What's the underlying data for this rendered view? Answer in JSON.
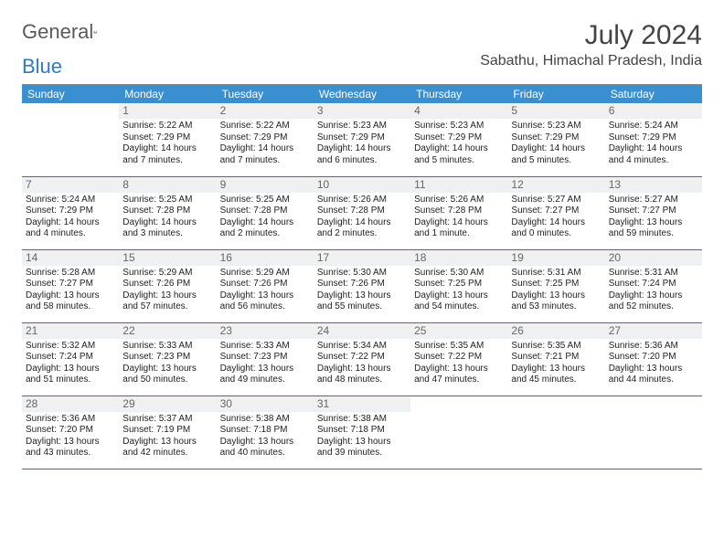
{
  "brand": {
    "word1": "General",
    "word2": "Blue",
    "accent": "#2f7bbf",
    "textcolor": "#5a5a5a"
  },
  "title": "July 2024",
  "subtitle": "Sabathu, Himachal Pradesh, India",
  "header_bg": "#3a8fd0",
  "header_fg": "#ffffff",
  "rule_color": "#3a6ea5",
  "daybar_bg": "#eef0f2",
  "days": [
    "Sunday",
    "Monday",
    "Tuesday",
    "Wednesday",
    "Thursday",
    "Friday",
    "Saturday"
  ],
  "fontsize_day": 12,
  "fontsize_info": 10,
  "weeks": [
    [
      {
        "n": "",
        "sr": "",
        "ss": "",
        "dl": ""
      },
      {
        "n": "1",
        "sr": "Sunrise: 5:22 AM",
        "ss": "Sunset: 7:29 PM",
        "dl": "Daylight: 14 hours and 7 minutes."
      },
      {
        "n": "2",
        "sr": "Sunrise: 5:22 AM",
        "ss": "Sunset: 7:29 PM",
        "dl": "Daylight: 14 hours and 7 minutes."
      },
      {
        "n": "3",
        "sr": "Sunrise: 5:23 AM",
        "ss": "Sunset: 7:29 PM",
        "dl": "Daylight: 14 hours and 6 minutes."
      },
      {
        "n": "4",
        "sr": "Sunrise: 5:23 AM",
        "ss": "Sunset: 7:29 PM",
        "dl": "Daylight: 14 hours and 5 minutes."
      },
      {
        "n": "5",
        "sr": "Sunrise: 5:23 AM",
        "ss": "Sunset: 7:29 PM",
        "dl": "Daylight: 14 hours and 5 minutes."
      },
      {
        "n": "6",
        "sr": "Sunrise: 5:24 AM",
        "ss": "Sunset: 7:29 PM",
        "dl": "Daylight: 14 hours and 4 minutes."
      }
    ],
    [
      {
        "n": "7",
        "sr": "Sunrise: 5:24 AM",
        "ss": "Sunset: 7:29 PM",
        "dl": "Daylight: 14 hours and 4 minutes."
      },
      {
        "n": "8",
        "sr": "Sunrise: 5:25 AM",
        "ss": "Sunset: 7:28 PM",
        "dl": "Daylight: 14 hours and 3 minutes."
      },
      {
        "n": "9",
        "sr": "Sunrise: 5:25 AM",
        "ss": "Sunset: 7:28 PM",
        "dl": "Daylight: 14 hours and 2 minutes."
      },
      {
        "n": "10",
        "sr": "Sunrise: 5:26 AM",
        "ss": "Sunset: 7:28 PM",
        "dl": "Daylight: 14 hours and 2 minutes."
      },
      {
        "n": "11",
        "sr": "Sunrise: 5:26 AM",
        "ss": "Sunset: 7:28 PM",
        "dl": "Daylight: 14 hours and 1 minute."
      },
      {
        "n": "12",
        "sr": "Sunrise: 5:27 AM",
        "ss": "Sunset: 7:27 PM",
        "dl": "Daylight: 14 hours and 0 minutes."
      },
      {
        "n": "13",
        "sr": "Sunrise: 5:27 AM",
        "ss": "Sunset: 7:27 PM",
        "dl": "Daylight: 13 hours and 59 minutes."
      }
    ],
    [
      {
        "n": "14",
        "sr": "Sunrise: 5:28 AM",
        "ss": "Sunset: 7:27 PM",
        "dl": "Daylight: 13 hours and 58 minutes."
      },
      {
        "n": "15",
        "sr": "Sunrise: 5:29 AM",
        "ss": "Sunset: 7:26 PM",
        "dl": "Daylight: 13 hours and 57 minutes."
      },
      {
        "n": "16",
        "sr": "Sunrise: 5:29 AM",
        "ss": "Sunset: 7:26 PM",
        "dl": "Daylight: 13 hours and 56 minutes."
      },
      {
        "n": "17",
        "sr": "Sunrise: 5:30 AM",
        "ss": "Sunset: 7:26 PM",
        "dl": "Daylight: 13 hours and 55 minutes."
      },
      {
        "n": "18",
        "sr": "Sunrise: 5:30 AM",
        "ss": "Sunset: 7:25 PM",
        "dl": "Daylight: 13 hours and 54 minutes."
      },
      {
        "n": "19",
        "sr": "Sunrise: 5:31 AM",
        "ss": "Sunset: 7:25 PM",
        "dl": "Daylight: 13 hours and 53 minutes."
      },
      {
        "n": "20",
        "sr": "Sunrise: 5:31 AM",
        "ss": "Sunset: 7:24 PM",
        "dl": "Daylight: 13 hours and 52 minutes."
      }
    ],
    [
      {
        "n": "21",
        "sr": "Sunrise: 5:32 AM",
        "ss": "Sunset: 7:24 PM",
        "dl": "Daylight: 13 hours and 51 minutes."
      },
      {
        "n": "22",
        "sr": "Sunrise: 5:33 AM",
        "ss": "Sunset: 7:23 PM",
        "dl": "Daylight: 13 hours and 50 minutes."
      },
      {
        "n": "23",
        "sr": "Sunrise: 5:33 AM",
        "ss": "Sunset: 7:23 PM",
        "dl": "Daylight: 13 hours and 49 minutes."
      },
      {
        "n": "24",
        "sr": "Sunrise: 5:34 AM",
        "ss": "Sunset: 7:22 PM",
        "dl": "Daylight: 13 hours and 48 minutes."
      },
      {
        "n": "25",
        "sr": "Sunrise: 5:35 AM",
        "ss": "Sunset: 7:22 PM",
        "dl": "Daylight: 13 hours and 47 minutes."
      },
      {
        "n": "26",
        "sr": "Sunrise: 5:35 AM",
        "ss": "Sunset: 7:21 PM",
        "dl": "Daylight: 13 hours and 45 minutes."
      },
      {
        "n": "27",
        "sr": "Sunrise: 5:36 AM",
        "ss": "Sunset: 7:20 PM",
        "dl": "Daylight: 13 hours and 44 minutes."
      }
    ],
    [
      {
        "n": "28",
        "sr": "Sunrise: 5:36 AM",
        "ss": "Sunset: 7:20 PM",
        "dl": "Daylight: 13 hours and 43 minutes."
      },
      {
        "n": "29",
        "sr": "Sunrise: 5:37 AM",
        "ss": "Sunset: 7:19 PM",
        "dl": "Daylight: 13 hours and 42 minutes."
      },
      {
        "n": "30",
        "sr": "Sunrise: 5:38 AM",
        "ss": "Sunset: 7:18 PM",
        "dl": "Daylight: 13 hours and 40 minutes."
      },
      {
        "n": "31",
        "sr": "Sunrise: 5:38 AM",
        "ss": "Sunset: 7:18 PM",
        "dl": "Daylight: 13 hours and 39 minutes."
      },
      {
        "n": "",
        "sr": "",
        "ss": "",
        "dl": ""
      },
      {
        "n": "",
        "sr": "",
        "ss": "",
        "dl": ""
      },
      {
        "n": "",
        "sr": "",
        "ss": "",
        "dl": ""
      }
    ]
  ]
}
